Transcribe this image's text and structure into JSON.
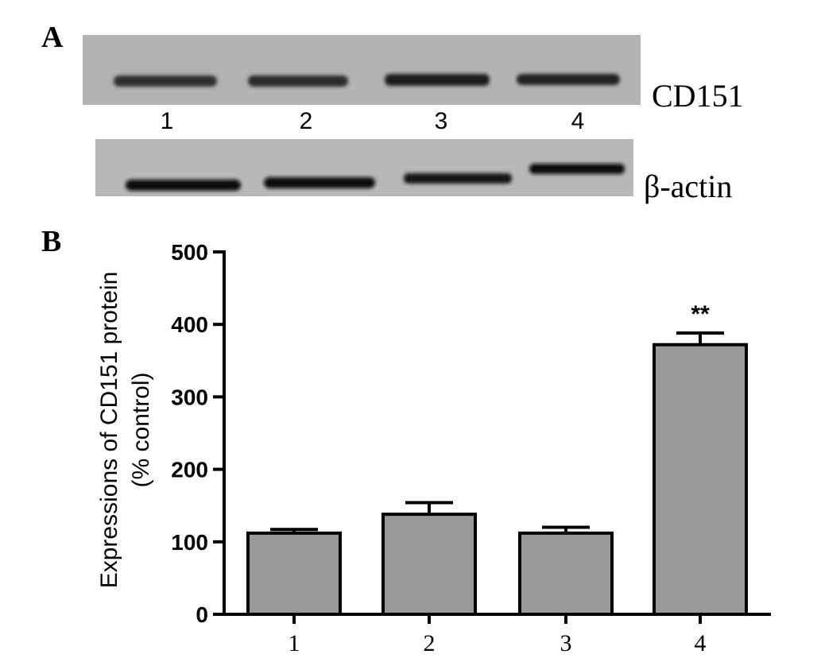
{
  "panels": {
    "a_label": "A",
    "b_label": "B"
  },
  "western_blot": {
    "lanes": [
      "1",
      "2",
      "3",
      "4"
    ],
    "rows": [
      {
        "label": "CD151",
        "band_intensity": [
          0.8,
          0.82,
          0.88,
          0.86
        ]
      },
      {
        "label": "β-actin",
        "band_intensity": [
          0.95,
          0.95,
          0.92,
          0.93
        ]
      }
    ]
  },
  "chart_data": {
    "type": "bar",
    "title": "",
    "xlabel": "",
    "ylabel_line1": "Expressions of CD151 protein",
    "ylabel_line2": "(% control)",
    "categories": [
      "1",
      "2",
      "3",
      "4"
    ],
    "values": [
      112,
      138,
      112,
      372
    ],
    "errors": [
      5,
      16,
      8,
      16
    ],
    "annotations": [
      "",
      "",
      "",
      "**"
    ],
    "ylim": [
      0,
      500
    ],
    "yticks": [
      0,
      100,
      200,
      300,
      400,
      500
    ],
    "bar_color": "#999999",
    "grid": false
  }
}
